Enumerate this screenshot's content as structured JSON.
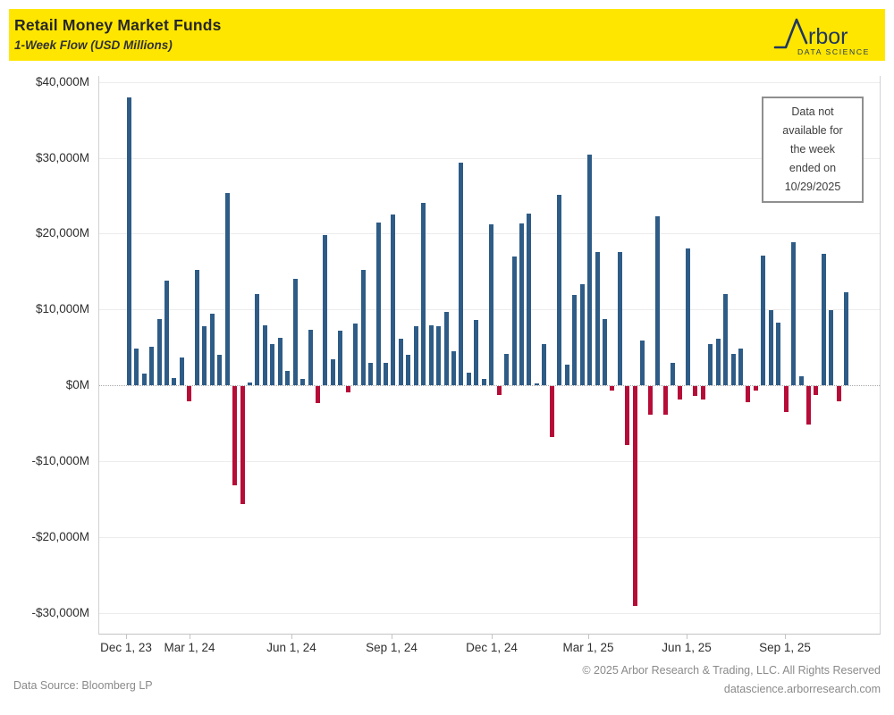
{
  "header": {
    "title": "Retail Money Market Funds",
    "subtitle": "1-Week Flow (USD Millions)",
    "logo": {
      "brand": "rbor",
      "tagline": "DATA SCIENCE"
    }
  },
  "annotation": {
    "text": "Data not\navailable for\nthe week\nended on\n10/29/2025"
  },
  "chart_data": {
    "type": "bar",
    "title": "Retail Money Market Funds",
    "subtitle": "1-Week Flow (USD Millions)",
    "unit": "USD Millions",
    "frequency": "weekly",
    "first_week_ending": "2023-12-27",
    "last_week_ending": "2025-10-22",
    "missing_week": "2025-10-29",
    "ylim": [
      -33000,
      41000
    ],
    "grid": true,
    "y_ticks": [
      {
        "label": "$40,000M",
        "value": 40000
      },
      {
        "label": "$30,000M",
        "value": 30000
      },
      {
        "label": "$20,000M",
        "value": 20000
      },
      {
        "label": "$10,000M",
        "value": 10000
      },
      {
        "label": "$0M",
        "value": 0
      },
      {
        "label": "-$10,000M",
        "value": -10000
      },
      {
        "label": "-$20,000M",
        "value": -20000
      },
      {
        "label": "-$30,000M",
        "value": -30000
      }
    ],
    "x_ticks": [
      "Dec 1, 23",
      "Mar 1, 24",
      "Jun 1, 24",
      "Sep 1, 24",
      "Dec 1, 24",
      "Mar 1, 25",
      "Jun 1, 25",
      "Sep 1, 25"
    ],
    "values": [
      38000,
      4800,
      1600,
      5100,
      8700,
      13800,
      1000,
      3700,
      -2000,
      15200,
      7800,
      9500,
      4000,
      25400,
      -13000,
      -15500,
      400,
      12000,
      7900,
      5500,
      6300,
      1900,
      14000,
      900,
      7300,
      -2200,
      19800,
      3500,
      7200,
      -800,
      8200,
      15200,
      3000,
      21500,
      3000,
      22500,
      6100,
      4000,
      7800,
      24100,
      7900,
      7800,
      9700,
      4500,
      29400,
      1700,
      8600,
      900,
      21200,
      -1100,
      4100,
      17000,
      21400,
      22600,
      300,
      5400,
      -6700,
      25100,
      2700,
      11900,
      13300,
      30400,
      17600,
      8700,
      -600,
      17600,
      -7700,
      -29000,
      5900,
      -3700,
      22300,
      -3800,
      3000,
      -1800,
      18000,
      -1300,
      -1700,
      5400,
      6200,
      12000,
      4100,
      4900,
      -2100,
      -600,
      17100,
      9900,
      8300,
      -3400,
      18900,
      1200,
      -5100,
      -1200,
      17300,
      9900,
      -2000,
      12300
    ],
    "colors": {
      "positive": "#2E5C86",
      "negative": "#B60D38",
      "grid": "#ECECEC",
      "zero_line": "#A8A8A8",
      "axis": "#C4C4C4"
    }
  },
  "footer": {
    "source": "Data Source: Bloomberg LP",
    "copyright": "© 2025 Arbor Research & Trading, LLC. All Rights Reserved",
    "website": "datascience.arborresearch.com"
  },
  "colors": {
    "header_bg": "#FFE600",
    "logo_navy": "#21375E"
  }
}
